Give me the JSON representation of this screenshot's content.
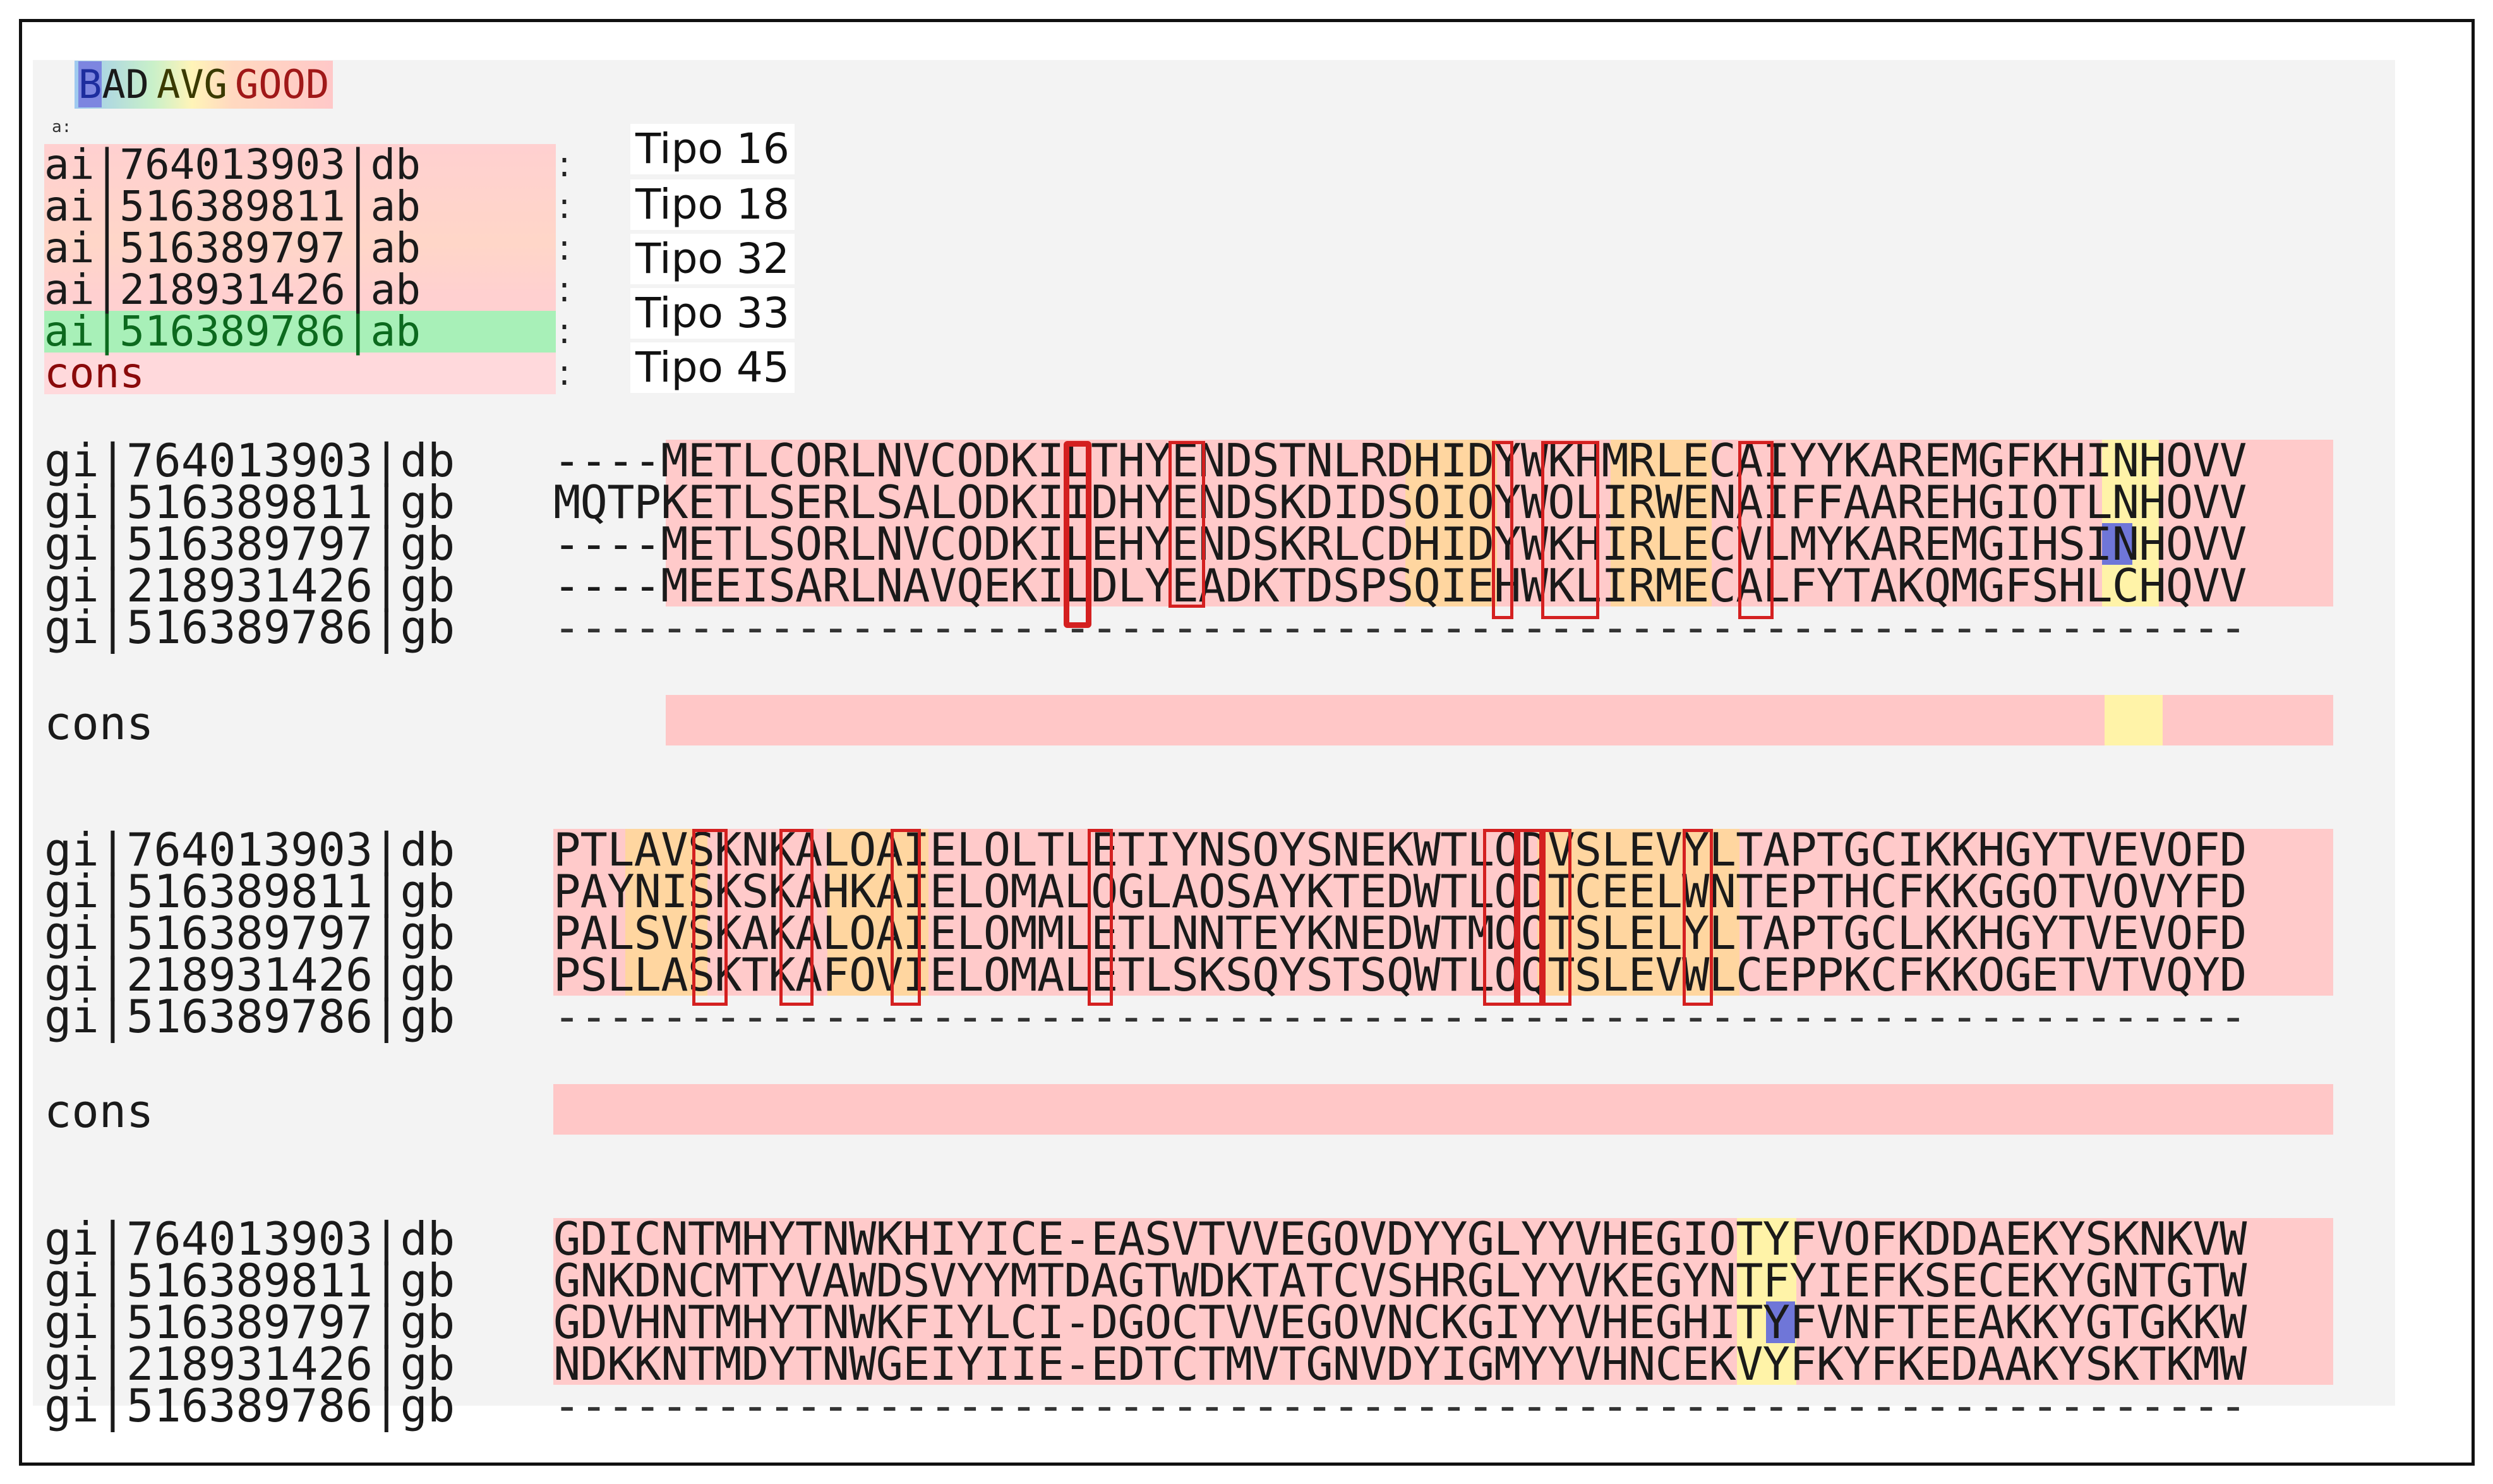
{
  "legend": {
    "bad_first": "B",
    "bad_rest": "AD",
    "avg": "AVG",
    "good": "GOOD"
  },
  "legend_small_mark": "a:",
  "header": {
    "rows": [
      {
        "name": "ai|764013903|db",
        "tipo": "Tipo 16"
      },
      {
        "name": "ai|516389811|ab",
        "tipo": "Tipo 18"
      },
      {
        "name": "ai|516389797|ab",
        "tipo": "Tipo 32"
      },
      {
        "name": "ai|218931426|ab",
        "tipo": "Tipo 33"
      },
      {
        "name": "ai|516389786|ab",
        "tipo": "Tipo 45"
      },
      {
        "name": "cons",
        "tipo": ""
      }
    ],
    "colon": ":"
  },
  "colors": {
    "good": "#ffc7c7",
    "avg": "#fff3a8",
    "warm": "#ffd6a0",
    "bad": "#6f76d8",
    "highlight_name": "#a8f0b8",
    "box": "#d42020"
  },
  "blocks": [
    {
      "rows": [
        {
          "name": "gi|764013903|db",
          "seq": "----METLCORLNVCODKILTHYENDSTNLRDHIDYWKHMRLECAIYYKAREMGFKHINHOVV"
        },
        {
          "name": "gi|516389811|gb",
          "seq": "MQTPKETLSERLSALODKIIDHYENDSKDIDSOIOYWOLIRWENAIFFAAREHGIOTLNHOVV"
        },
        {
          "name": "gi|516389797|gb",
          "seq": "----METLSORLNVCODKILEHYENDSKRLCDHIDYWKHIRLECVLMYKAREMGIHSINHOVV"
        },
        {
          "name": "gi|218931426|gb",
          "seq": "----MEEISARLNAVQEKILDLYEADKTDSPSQIEHWKLIRMECALFYTAKQMGFSHLCHQVV"
        },
        {
          "name": "gi|516389786|gb",
          "seq": "---------------------------------------------------------------"
        }
      ],
      "cons_label": "cons"
    },
    {
      "rows": [
        {
          "name": "gi|764013903|db",
          "seq": "PTLAVSKNKALOAIELOLTLETIYNSOYSNEKWTLODVSLEVYLTAPTGCIKKHGYTVEVOFD"
        },
        {
          "name": "gi|516389811|gb",
          "seq": "PAYNISKSKAHKAIELOMALOGLAOSAYKTEDWTLODTCEELWNTEPTHCFKKGGOTVOVYFD"
        },
        {
          "name": "gi|516389797|gb",
          "seq": "PALSVSKAKALOAIELOMMLETLNNTEYKNEDWTMOOTSLELYLTAPTGCLKKHGYTVEVOFD"
        },
        {
          "name": "gi|218931426|gb",
          "seq": "PSLLASKTKAFOVIELOMALETLSKSQYSTSQWTLOQTSLEVWLCEPPKCFKKOGETVTVQYD"
        },
        {
          "name": "gi|516389786|gb",
          "seq": "---------------------------------------------------------------"
        }
      ],
      "cons_label": "cons"
    },
    {
      "rows": [
        {
          "name": "gi|764013903|db",
          "seq": "GDICNTMHYTNWKHIYICE-EASVTVVEGOVDYYGLYYVHEGIOTYFVOFKDDAEKYSKNKVW"
        },
        {
          "name": "gi|516389811|gb",
          "seq": "GNKDNCMTYVAWDSVYYMTDAGTWDKTATCVSHRGLYYVKEGYNTFYIEFKSECEKYGNTGTW"
        },
        {
          "name": "gi|516389797|gb",
          "seq": "GDVHNTMHYTNWKFIYLCI-DGOCTVVEGOVNCKGIYYVHEGHITYFVNFTEEAKKYGTGKKW"
        },
        {
          "name": "gi|218931426|gb",
          "seq": "NDKKNTMDYTNWGEIYIIE-EDTCTMVTGNVDYIGMYYVHNCEKVYFKYFKEDAAKYSKTKMW"
        },
        {
          "name": "gi|516389786|gb",
          "seq": "---------------------------------------------------------------"
        }
      ]
    }
  ]
}
